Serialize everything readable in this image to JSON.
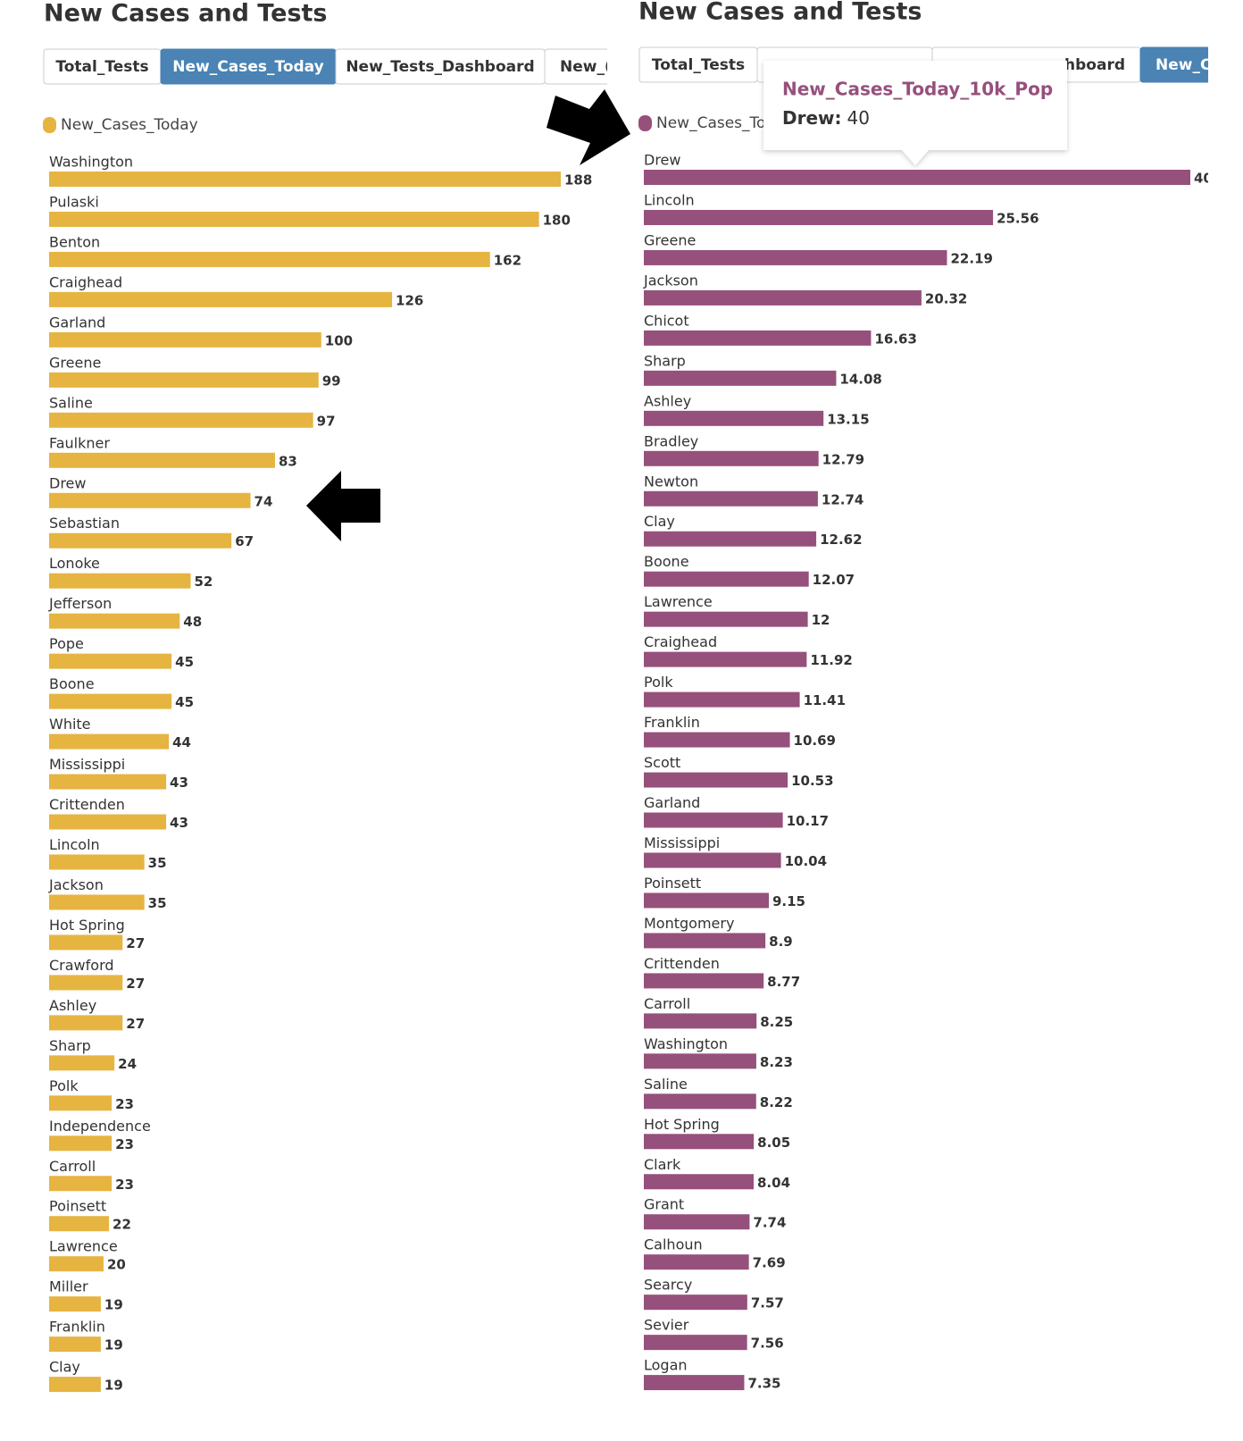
{
  "chart_data": [
    {
      "type": "bar",
      "orientation": "horizontal",
      "title": "New Cases and Tests",
      "tabs": [
        "Total_Tests",
        "New_Cases_Today",
        "New_Tests_Dashboard",
        "New_("
      ],
      "active_tab": 1,
      "categories": [
        "Washington",
        "Pulaski",
        "Benton",
        "Craighead",
        "Garland",
        "Greene",
        "Saline",
        "Faulkner",
        "Drew",
        "Sebastian",
        "Lonoke",
        "Jefferson",
        "Pope",
        "Boone",
        "White",
        "Mississippi",
        "Crittenden",
        "Lincoln",
        "Jackson",
        "Hot Spring",
        "Crawford",
        "Ashley",
        "Sharp",
        "Polk",
        "Independence",
        "Carroll",
        "Poinsett",
        "Lawrence",
        "Miller",
        "Franklin",
        "Clay"
      ],
      "series": [
        {
          "name": "New_Cases_Today",
          "color": "#e6b441",
          "values": [
            188,
            180,
            162,
            126,
            100,
            99,
            97,
            83,
            74,
            67,
            52,
            48,
            45,
            45,
            44,
            43,
            43,
            35,
            35,
            27,
            27,
            27,
            24,
            23,
            23,
            23,
            22,
            20,
            19,
            19,
            19
          ]
        }
      ]
    },
    {
      "type": "bar",
      "orientation": "horizontal",
      "title": "New Cases and Tests",
      "tabs": [
        "Total_Tests",
        "hboard",
        "New_C"
      ],
      "active_tab": 2,
      "categories": [
        "Drew",
        "Lincoln",
        "Greene",
        "Jackson",
        "Chicot",
        "Sharp",
        "Ashley",
        "Bradley",
        "Newton",
        "Clay",
        "Boone",
        "Lawrence",
        "Craighead",
        "Polk",
        "Franklin",
        "Scott",
        "Garland",
        "Mississippi",
        "Poinsett",
        "Montgomery",
        "Crittenden",
        "Carroll",
        "Washington",
        "Saline",
        "Hot Spring",
        "Clark",
        "Grant",
        "Calhoun",
        "Searcy",
        "Sevier",
        "Logan"
      ],
      "series": [
        {
          "name": "New_Cases_Today_10k_Pop",
          "color": "#96507c",
          "values": [
            40,
            25.56,
            22.19,
            20.32,
            16.63,
            14.08,
            13.15,
            12.79,
            12.74,
            12.62,
            12.07,
            12,
            11.92,
            11.41,
            10.69,
            10.53,
            10.17,
            10.04,
            9.15,
            8.9,
            8.77,
            8.25,
            8.23,
            8.22,
            8.05,
            8.04,
            7.74,
            7.69,
            7.57,
            7.56,
            7.35
          ]
        }
      ],
      "tooltip": {
        "label": "Drew:"
      }
    }
  ]
}
